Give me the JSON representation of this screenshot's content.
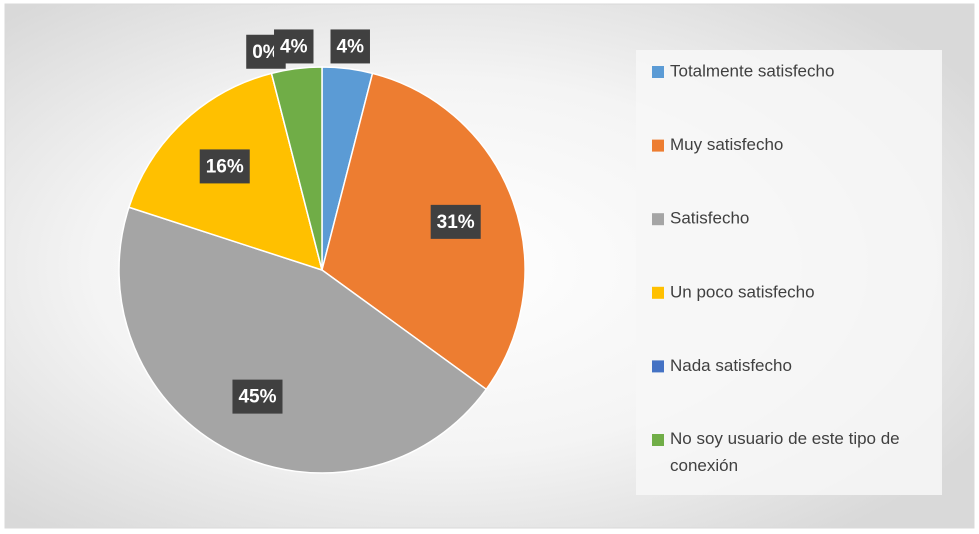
{
  "chart_data": {
    "type": "pie",
    "categories": [
      "Totalmente satisfecho",
      "Muy satisfecho",
      "Satisfecho",
      "Un poco satisfecho",
      "Nada satisfecho",
      "No soy usuario de este tipo de conexión"
    ],
    "values": [
      4,
      31,
      45,
      16,
      0,
      4
    ],
    "value_labels": [
      "4%",
      "31%",
      "45%",
      "16%",
      "0%",
      "4%"
    ],
    "colors": [
      "#5b9bd5",
      "#ed7d31",
      "#a5a5a5",
      "#ffc000",
      "#4472c4",
      "#70ad47"
    ],
    "legend": "right"
  }
}
